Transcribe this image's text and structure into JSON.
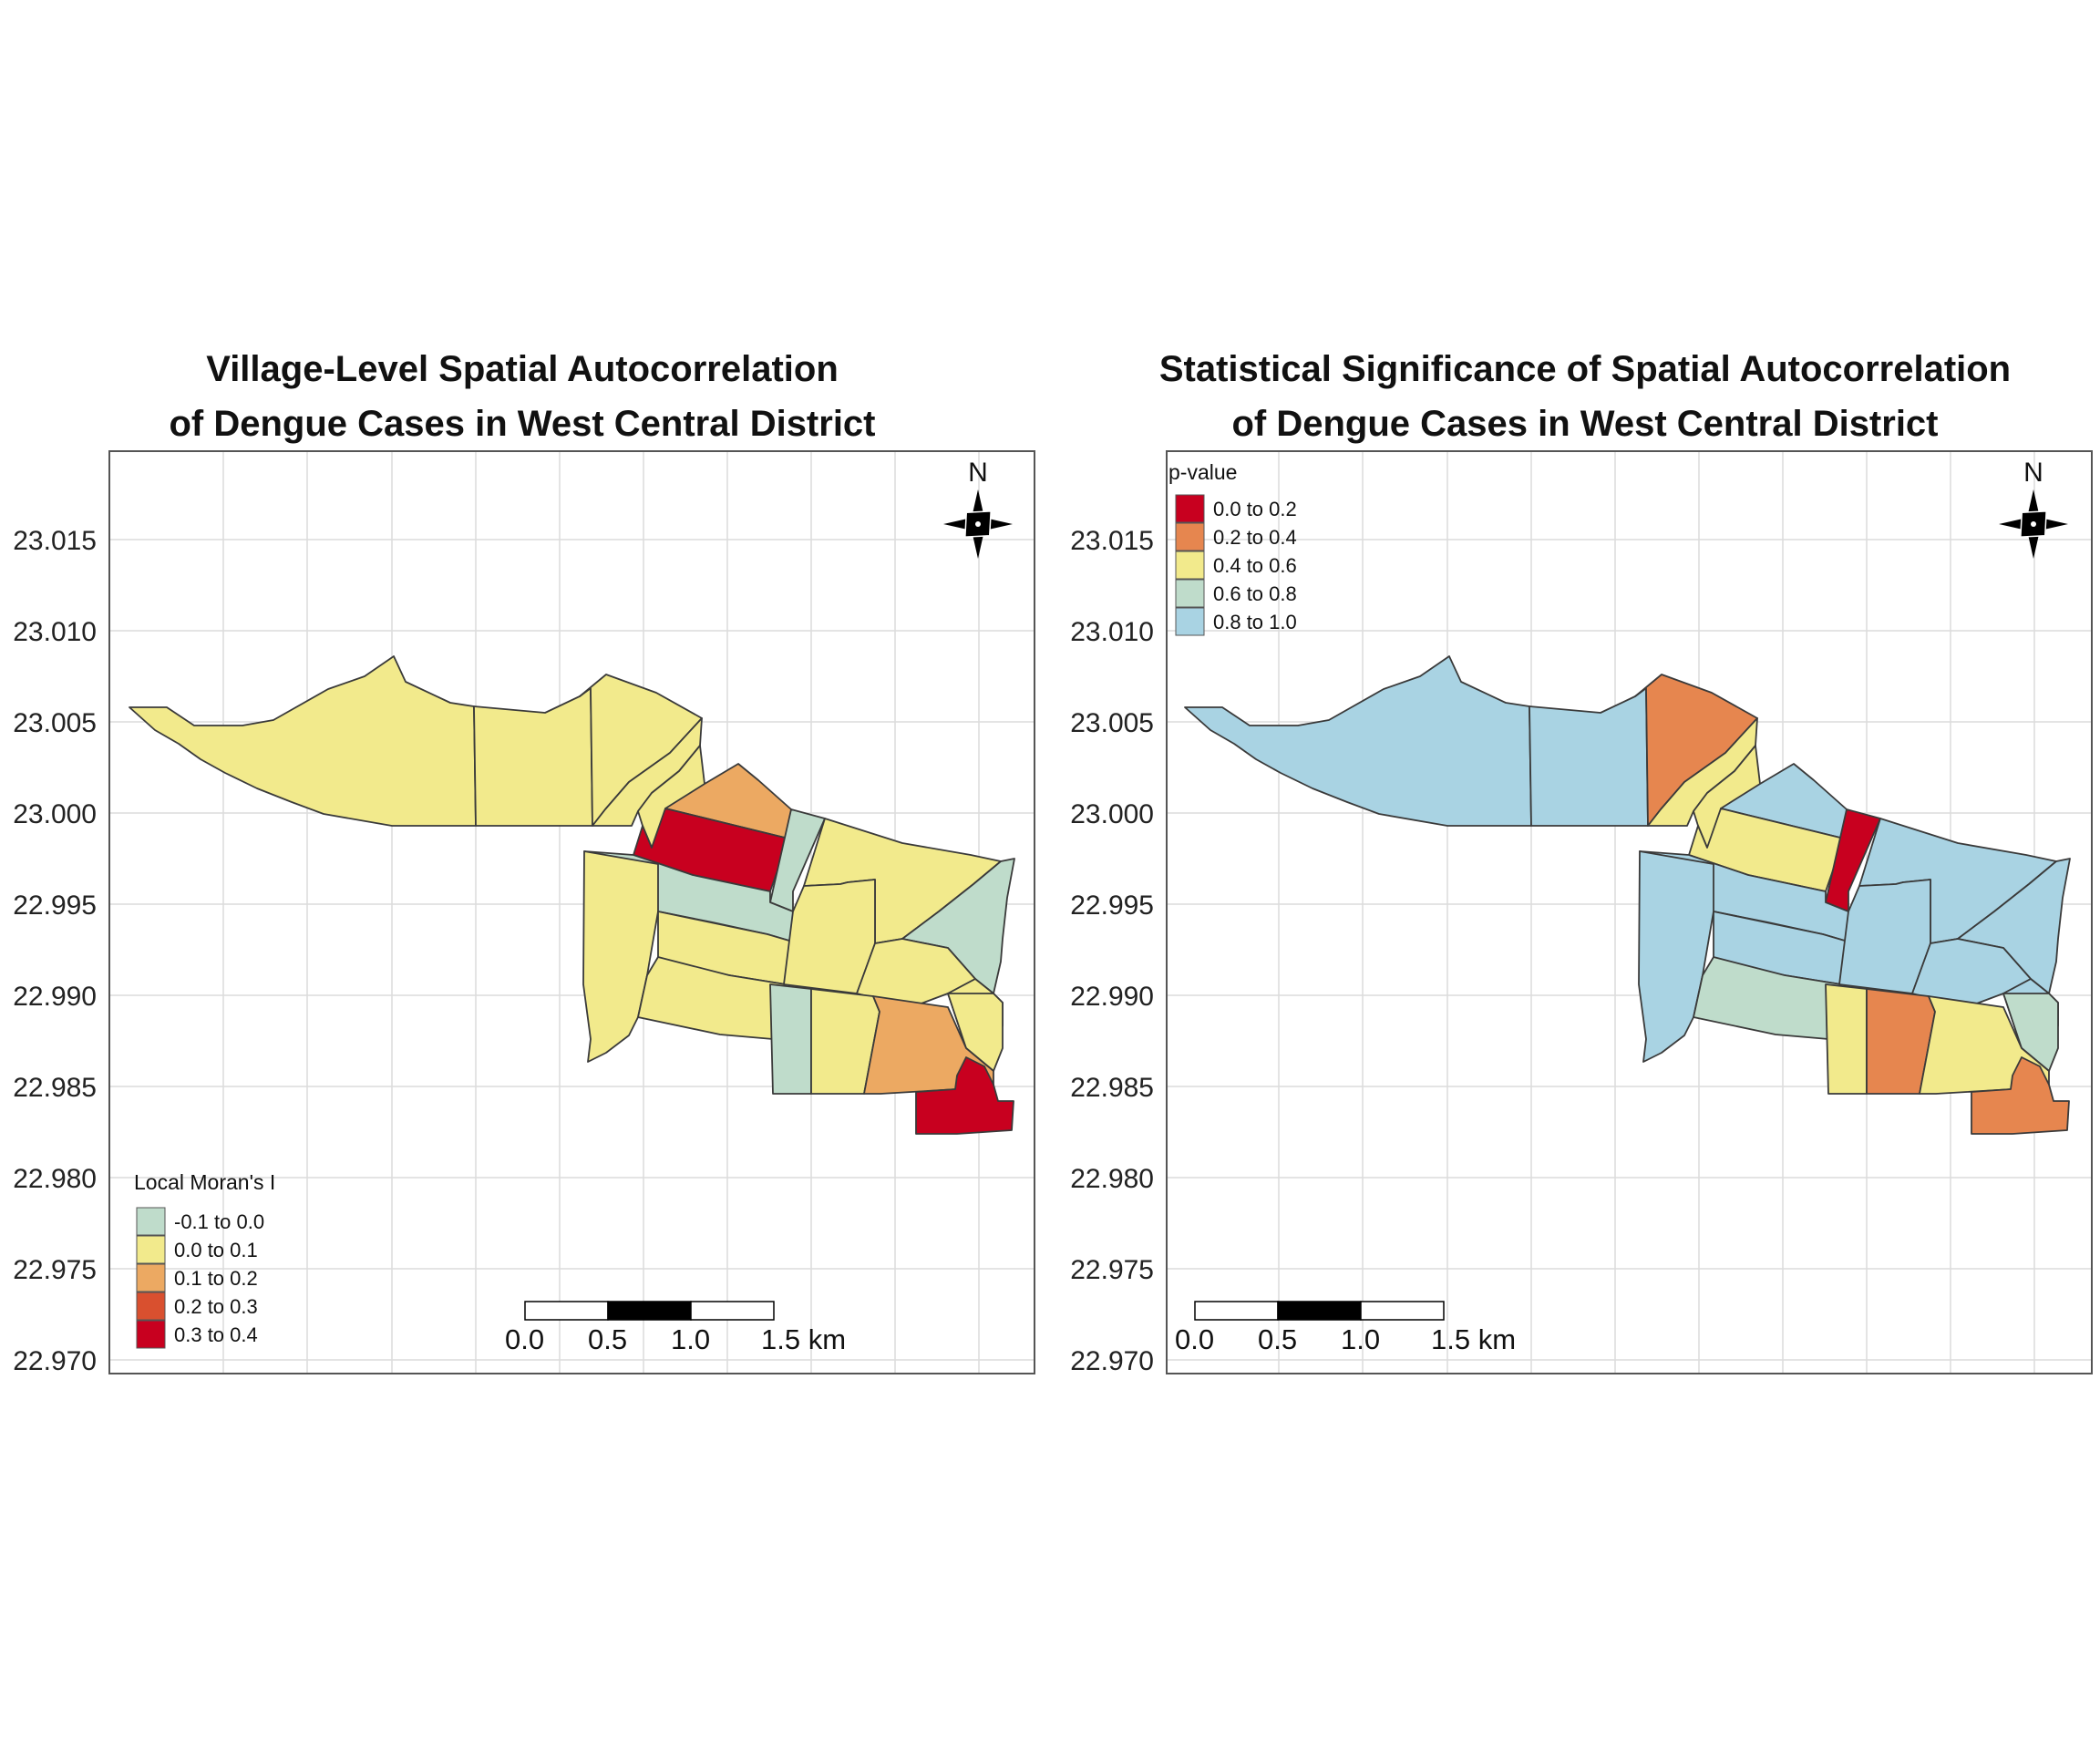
{
  "colors": {
    "red": "#c8001f",
    "orange_light": "#eca962",
    "orange": "#e6864f",
    "red_orange": "#d9502f",
    "yellow": "#f2ea8c",
    "green": "#bfdccb",
    "blue": "#a9d3e3"
  },
  "north_label": "N",
  "scale_bar": {
    "labels": [
      "0.0",
      "0.5",
      "1.0",
      "1.5 km"
    ]
  },
  "y_axis_ticks": [
    "23.015",
    "23.010",
    "23.005",
    "23.000",
    "22.995",
    "22.990",
    "22.985",
    "22.980",
    "22.975",
    "22.970"
  ],
  "maps": [
    {
      "title_lines": [
        "Village-Level Spatial Autocorrelation",
        "of Dengue Cases in West Central District"
      ],
      "legend": {
        "title": "Local Moran's I",
        "items": [
          {
            "label": "-0.1 to 0.0",
            "color": "#bfdccb"
          },
          {
            "label": "0.0 to 0.1",
            "color": "#f2ea8c"
          },
          {
            "label": "0.1 to 0.2",
            "color": "#eca962"
          },
          {
            "label": "0.2 to 0.3",
            "color": "#d9502f"
          },
          {
            "label": "0.3 to 0.4",
            "color": "#c8001f"
          }
        ]
      },
      "region_values": {
        "west": "yellow",
        "nw2": "yellow",
        "north_a": "yellow",
        "north_b": "yellow",
        "small_n": "yellow",
        "center_red": "red",
        "orange_top": "orange_light",
        "green_strip": "green",
        "green_diag": "green",
        "east_big": "yellow",
        "east_green": "green",
        "west_lower": "yellow",
        "mid_block": "yellow",
        "lower_mid": "yellow",
        "right_mid": "yellow",
        "right_mid2": "yellow",
        "east_small": "yellow",
        "s_green": "green",
        "s_yellow": "yellow",
        "s_orange": "orange_light",
        "s_red": "red",
        "right_edge": "yellow"
      }
    },
    {
      "title_lines": [
        "Statistical Significance of Spatial Autocorrelation",
        "of Dengue Cases in West Central District"
      ],
      "legend": {
        "title": "p-value",
        "items": [
          {
            "label": "0.0 to 0.2",
            "color": "#c8001f"
          },
          {
            "label": "0.2 to 0.4",
            "color": "#e6864f"
          },
          {
            "label": "0.4 to 0.6",
            "color": "#f2ea8c"
          },
          {
            "label": "0.6 to 0.8",
            "color": "#bfdccb"
          },
          {
            "label": "0.8 to 1.0",
            "color": "#a9d3e3"
          }
        ]
      },
      "region_values": {
        "west": "blue",
        "nw2": "blue",
        "north_a": "orange",
        "north_b": "yellow",
        "small_n": "yellow",
        "center_red": "yellow",
        "orange_top": "blue",
        "green_strip": "red",
        "green_diag": "blue",
        "east_big": "blue",
        "east_green": "blue",
        "west_lower": "blue",
        "mid_block": "blue",
        "lower_mid": "green",
        "right_mid": "blue",
        "right_mid2": "blue",
        "east_small": "blue",
        "s_green": "yellow",
        "s_yellow": "orange",
        "s_orange": "yellow",
        "s_red": "orange",
        "right_edge": "green"
      }
    }
  ]
}
